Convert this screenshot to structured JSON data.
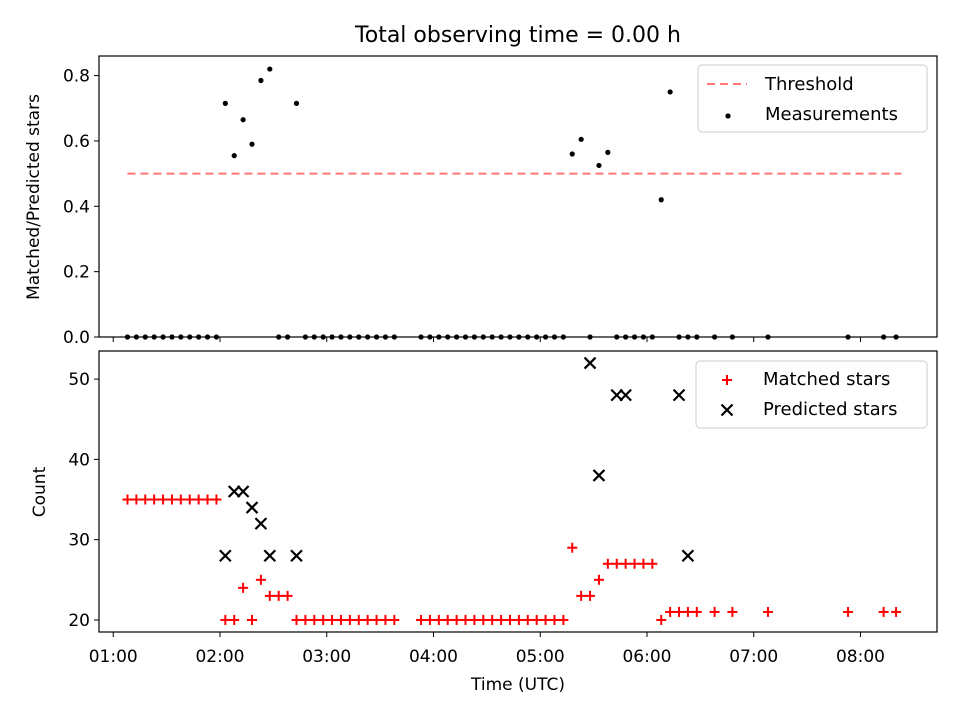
{
  "colors": {
    "threshold": "#ff7777",
    "measurement": "#000000",
    "matched": "#ff0000",
    "predicted": "#000000"
  },
  "chart_data": [
    {
      "type": "scatter",
      "title": "Total observing time = 0.00 h",
      "xlabel": "",
      "ylabel": "Matched/Predicted stars",
      "xlim": [
        "00:52",
        "08:43"
      ],
      "ylim": [
        0,
        0.86
      ],
      "yticks": [
        "0.0",
        "0.2",
        "0.4",
        "0.6",
        "0.8"
      ],
      "legend_position": "upper right",
      "series": [
        {
          "name": "Threshold",
          "kind": "dashed-line",
          "x": [
            "01:08",
            "08:23"
          ],
          "y": [
            0.5,
            0.5
          ]
        },
        {
          "name": "Measurements",
          "kind": "dots",
          "x": [
            "01:08",
            "01:13",
            "01:18",
            "01:23",
            "01:28",
            "01:33",
            "01:38",
            "01:43",
            "01:48",
            "01:53",
            "01:58",
            "02:03",
            "02:08",
            "02:13",
            "02:18",
            "02:23",
            "02:28",
            "02:33",
            "02:38",
            "02:43",
            "02:48",
            "02:53",
            "02:58",
            "03:03",
            "03:08",
            "03:13",
            "03:18",
            "03:23",
            "03:28",
            "03:33",
            "03:38",
            "03:53",
            "03:58",
            "04:03",
            "04:08",
            "04:13",
            "04:18",
            "04:23",
            "04:28",
            "04:33",
            "04:38",
            "04:43",
            "04:48",
            "04:53",
            "04:58",
            "05:03",
            "05:08",
            "05:13",
            "05:18",
            "05:23",
            "05:28",
            "05:33",
            "05:38",
            "05:43",
            "05:48",
            "05:53",
            "05:58",
            "06:03",
            "06:08",
            "06:13",
            "06:18",
            "06:23",
            "06:28",
            "06:38",
            "06:48",
            "07:08",
            "07:53",
            "08:13",
            "08:20"
          ],
          "y": [
            0,
            0,
            0,
            0,
            0,
            0,
            0,
            0,
            0,
            0,
            0,
            0.715,
            0.555,
            0.665,
            0.59,
            0.785,
            0.82,
            0,
            0,
            0.715,
            0,
            0,
            0,
            0,
            0,
            0,
            0,
            0,
            0,
            0,
            0,
            0,
            0,
            0,
            0,
            0,
            0,
            0,
            0,
            0,
            0,
            0,
            0,
            0,
            0,
            0,
            0,
            0,
            0.56,
            0.605,
            0,
            0.525,
            0.565,
            0,
            0,
            0,
            0,
            0,
            0.42,
            0.75,
            0,
            0,
            0,
            0,
            0,
            0,
            0,
            0,
            0
          ]
        }
      ]
    },
    {
      "type": "scatter",
      "title": "",
      "xlabel": "Time (UTC)",
      "ylabel": "Count",
      "xlim": [
        "00:52",
        "08:43"
      ],
      "xticks": [
        "01:00",
        "02:00",
        "03:00",
        "04:00",
        "05:00",
        "06:00",
        "07:00",
        "08:00"
      ],
      "ylim": [
        18.5,
        53.5
      ],
      "yticks": [
        "20",
        "30",
        "40",
        "50"
      ],
      "legend_position": "upper right",
      "series": [
        {
          "name": "Matched stars",
          "marker": "plus",
          "x": [
            "01:08",
            "01:13",
            "01:18",
            "01:23",
            "01:28",
            "01:33",
            "01:38",
            "01:43",
            "01:48",
            "01:53",
            "01:58",
            "02:03",
            "02:08",
            "02:13",
            "02:18",
            "02:23",
            "02:28",
            "02:33",
            "02:38",
            "02:43",
            "02:48",
            "02:53",
            "02:58",
            "03:03",
            "03:08",
            "03:13",
            "03:18",
            "03:23",
            "03:28",
            "03:33",
            "03:38",
            "03:53",
            "03:58",
            "04:03",
            "04:08",
            "04:13",
            "04:18",
            "04:23",
            "04:28",
            "04:33",
            "04:38",
            "04:43",
            "04:48",
            "04:53",
            "04:58",
            "05:03",
            "05:08",
            "05:13",
            "05:18",
            "05:23",
            "05:28",
            "05:33",
            "05:38",
            "05:43",
            "05:48",
            "05:53",
            "05:58",
            "06:03",
            "06:08",
            "06:13",
            "06:18",
            "06:23",
            "06:28",
            "06:38",
            "06:48",
            "07:08",
            "07:53",
            "08:13",
            "08:20"
          ],
          "y": [
            35,
            35,
            35,
            35,
            35,
            35,
            35,
            35,
            35,
            35,
            35,
            20,
            20,
            24,
            20,
            25,
            23,
            23,
            23,
            20,
            20,
            20,
            20,
            20,
            20,
            20,
            20,
            20,
            20,
            20,
            20,
            20,
            20,
            20,
            20,
            20,
            20,
            20,
            20,
            20,
            20,
            20,
            20,
            20,
            20,
            20,
            20,
            20,
            29,
            23,
            23,
            25,
            27,
            27,
            27,
            27,
            27,
            27,
            20,
            21,
            21,
            21,
            21,
            21,
            21,
            21,
            21,
            21,
            21
          ]
        },
        {
          "name": "Predicted stars",
          "marker": "x",
          "x": [
            "02:03",
            "02:08",
            "02:13",
            "02:18",
            "02:23",
            "02:28",
            "02:43",
            "05:28",
            "05:33",
            "05:43",
            "05:48",
            "06:18",
            "06:23"
          ],
          "y": [
            28,
            36,
            36,
            34,
            32,
            28,
            28,
            52,
            38,
            48,
            48,
            48,
            28
          ]
        }
      ]
    }
  ]
}
